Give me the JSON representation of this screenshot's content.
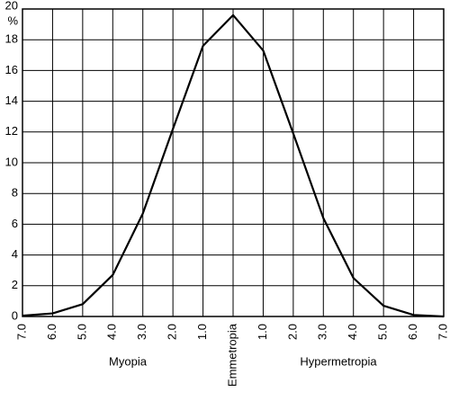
{
  "chart_data": {
    "type": "line",
    "categories": [
      "7.0",
      "6.0",
      "5.0",
      "4.0",
      "3.0",
      "2.0",
      "1.0",
      "Emmetropia",
      "1.0",
      "2.0",
      "3.0",
      "4.0",
      "5.0",
      "6.0",
      "7.0"
    ],
    "values": [
      0.05,
      0.2,
      0.8,
      2.7,
      6.7,
      12.2,
      17.6,
      19.6,
      17.3,
      11.9,
      6.4,
      2.5,
      0.7,
      0.1,
      0.0
    ],
    "color": "#000000",
    "y_label": "%",
    "ylim": [
      0,
      20
    ],
    "yticks": [
      0,
      2,
      4,
      6,
      8,
      10,
      12,
      14,
      16,
      18,
      20
    ],
    "grid": true,
    "annotations": [
      "Myopia",
      "Hypermetropia"
    ]
  }
}
